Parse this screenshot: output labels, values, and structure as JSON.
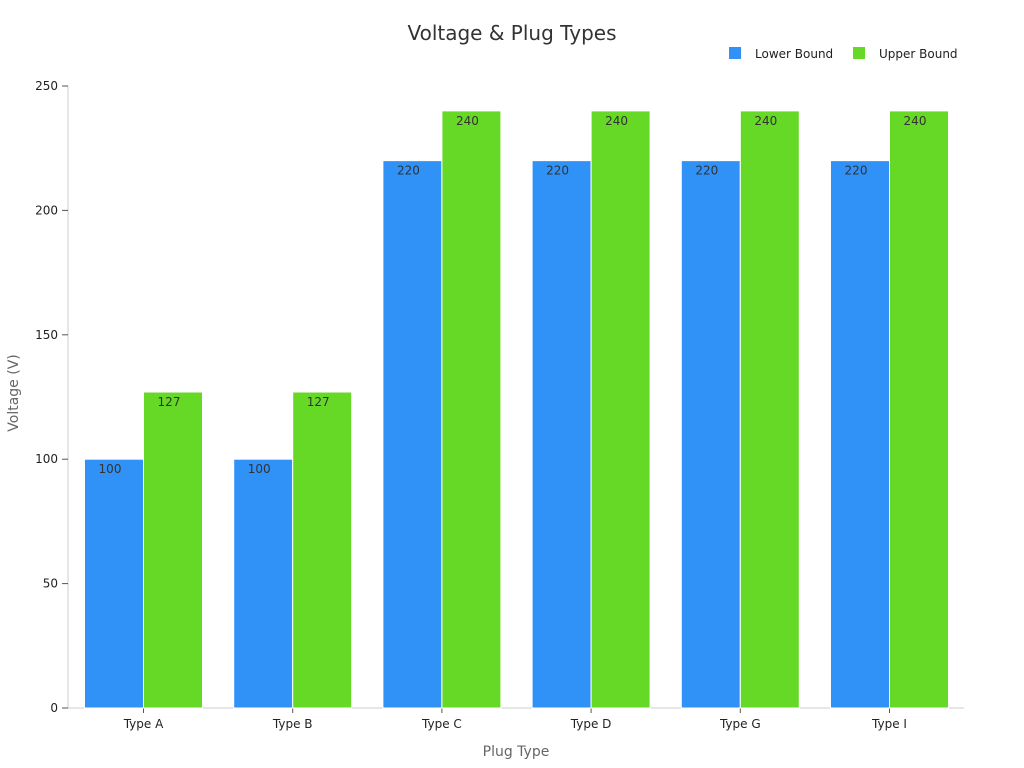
{
  "chart_data": {
    "type": "bar",
    "title": "Voltage & Plug Types",
    "xlabel": "Plug Type",
    "ylabel": "Voltage (V)",
    "categories": [
      "Type A",
      "Type B",
      "Type C",
      "Type D",
      "Type G",
      "Type I"
    ],
    "series": [
      {
        "name": "Lower Bound",
        "values": [
          100,
          100,
          220,
          220,
          220,
          220
        ],
        "color": "#3091f7"
      },
      {
        "name": "Upper Bound",
        "values": [
          127,
          127,
          240,
          240,
          240,
          240
        ],
        "color": "#66d926"
      }
    ],
    "ylim": [
      0,
      250
    ],
    "yticks": [
      0,
      50,
      100,
      150,
      200,
      250
    ],
    "grid": false,
    "legend": "top-right",
    "data_labels": true
  }
}
